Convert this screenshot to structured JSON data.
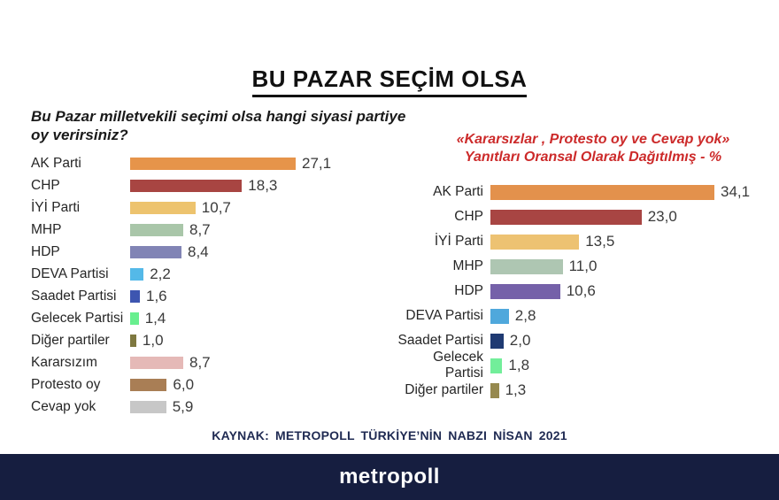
{
  "page": {
    "title": "BU PAZAR SEÇİM OLSA",
    "source_note": "KAYNAK: METROPOLL TÜRKİYE’NİN NABZI NİSAN 2021",
    "footer_brand": "metropoll",
    "colors": {
      "background": "#ffffff",
      "footer_bg": "#161E40",
      "source_text": "#1F2A52",
      "subtitle_red": "#CC2A2A",
      "title_text": "#111111"
    }
  },
  "left_question_lines": [
    "Bu Pazar milletvekili seçimi olsa hangi siyasi partiye",
    "oy verirsiniz?"
  ],
  "right_subtitle_lines": [
    "«Kararsızlar , Protesto oy ve Cevap yok»",
    "Yanıtları Oransal Olarak Dağıtılmış - %"
  ],
  "chart_data": [
    {
      "type": "bar",
      "orientation": "horizontal",
      "title": "Bu Pazar milletvekili seçimi olsa hangi siyasi partiye oy verirsiniz?",
      "unit": "%",
      "grid": false,
      "legend": false,
      "xlim": [
        0,
        30
      ],
      "categories": [
        "AK Parti",
        "CHP",
        "İYİ Parti",
        "MHP",
        "HDP",
        "DEVA Partisi",
        "Saadet Partisi",
        "Gelecek Partisi",
        "Diğer partiler",
        "Kararsızım",
        "Protesto oy",
        "Cevap yok"
      ],
      "values": [
        27.1,
        18.3,
        10.7,
        8.7,
        8.4,
        2.2,
        1.6,
        1.4,
        1.0,
        8.7,
        6.0,
        5.9
      ],
      "value_labels": [
        "27,1",
        "18,3",
        "10,7",
        "8,7",
        "8,4",
        "2,2",
        "1,6",
        "1,4",
        "1,0",
        "8,7",
        "6,0",
        "5,9"
      ],
      "bar_colors": [
        "#E6944A",
        "#A84542",
        "#EDC36E",
        "#A9C6A9",
        "#8184B5",
        "#54B9E8",
        "#3D55B0",
        "#68EF8F",
        "#7E7840",
        "#E5B9B7",
        "#A97E55",
        "#C7C7C7"
      ]
    },
    {
      "type": "bar",
      "orientation": "horizontal",
      "title": "«Kararsızlar , Protesto oy ve Cevap yok» Yanıtları Oransal Olarak Dağıtılmış - %",
      "unit": "%",
      "grid": false,
      "legend": false,
      "xlim": [
        0,
        38
      ],
      "categories": [
        "AK Parti",
        "CHP",
        "İYİ Parti",
        "MHP",
        "HDP",
        "DEVA Partisi",
        "Saadet Partisi",
        "Gelecek Partisi",
        "Diğer partiler"
      ],
      "values": [
        34.1,
        23.0,
        13.5,
        11.0,
        10.6,
        2.8,
        2.0,
        1.8,
        1.3
      ],
      "value_labels": [
        "34,1",
        "23,0",
        "13,5",
        "11,0",
        "10,6",
        "2,8",
        "2,0",
        "1,8",
        "1,3"
      ],
      "bar_colors": [
        "#E3914C",
        "#A84543",
        "#EDC272",
        "#AEC6B2",
        "#7561A9",
        "#4FA8DC",
        "#1F3A72",
        "#72EE9A",
        "#96894F"
      ]
    }
  ]
}
